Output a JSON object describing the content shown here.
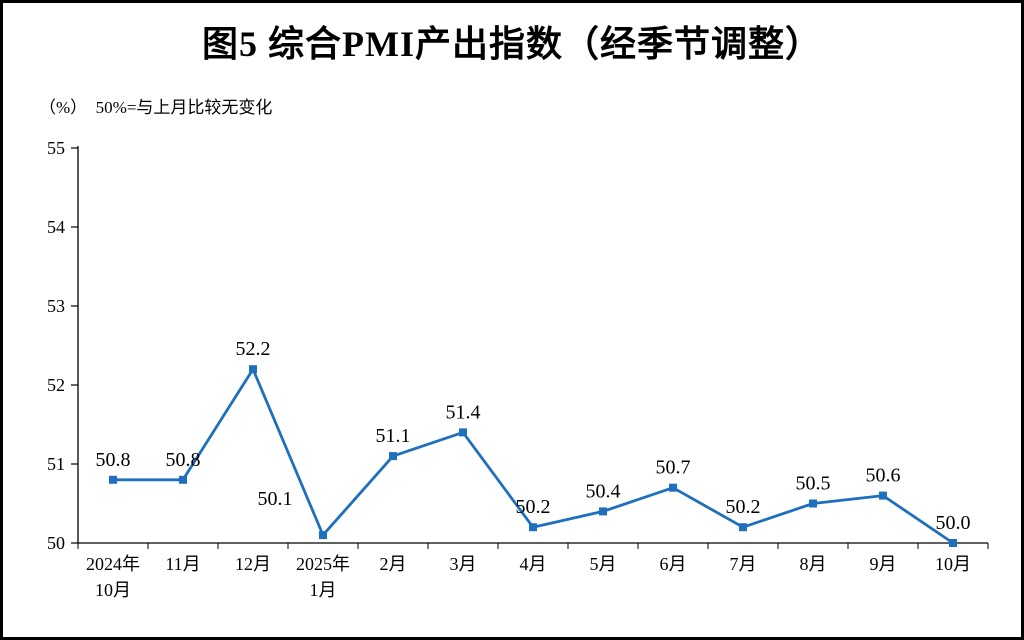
{
  "title": "图5 综合PMI产出指数（经季节调整）",
  "unit_label": "（%）  50%=与上月比较无变化",
  "chart_data": {
    "type": "line",
    "categories": [
      [
        "2024年",
        "10月"
      ],
      [
        "11月"
      ],
      [
        "12月"
      ],
      [
        "2025年",
        "1月"
      ],
      [
        "2月"
      ],
      [
        "3月"
      ],
      [
        "4月"
      ],
      [
        "5月"
      ],
      [
        "6月"
      ],
      [
        "7月"
      ],
      [
        "8月"
      ],
      [
        "9月"
      ],
      [
        "10月"
      ]
    ],
    "series": [
      {
        "name": "综合PMI产出指数",
        "values": [
          50.8,
          50.8,
          52.2,
          50.1,
          51.1,
          51.4,
          50.2,
          50.4,
          50.7,
          50.2,
          50.5,
          50.6,
          50.0
        ]
      }
    ],
    "ylim": [
      50,
      55
    ],
    "yticks": [
      50,
      51,
      52,
      53,
      54,
      55
    ],
    "xlabel": "",
    "ylabel": "",
    "grid": false,
    "legend": "none",
    "line_color": "#1f6fbf",
    "marker": "square",
    "data_labels": true
  }
}
